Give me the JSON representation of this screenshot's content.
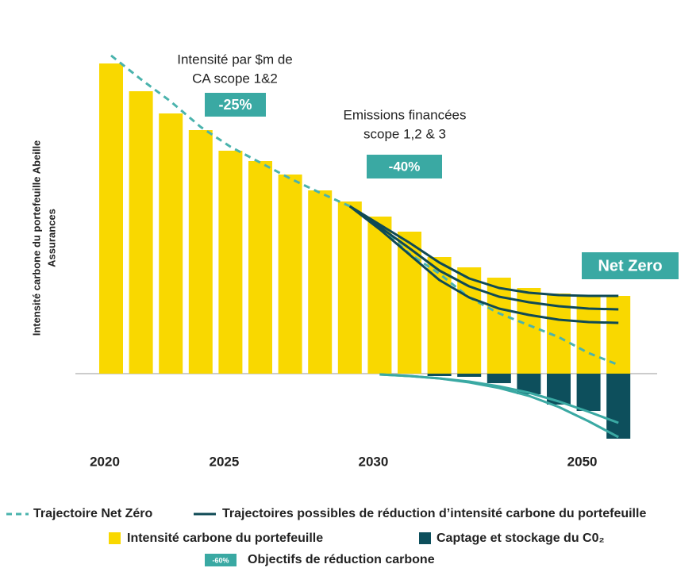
{
  "chart_data": {
    "type": "bar",
    "y_label": [
      "Intensité carbone du portefeuille Abeille",
      "Assurances"
    ],
    "categories": [
      "2020",
      null,
      null,
      null,
      "2025",
      null,
      null,
      null,
      null,
      "2030",
      null,
      null,
      null,
      null,
      null,
      null,
      "2050",
      null
    ],
    "ylim": [
      -100,
      400
    ],
    "series": [
      {
        "name": "Intensité carbone du portefeuille",
        "color": "#f9d800",
        "kind": "bar",
        "values": [
          391,
          356,
          328,
          307,
          281,
          268,
          251,
          231,
          217,
          198,
          179,
          147,
          134,
          121,
          108,
          101,
          98,
          98
        ]
      },
      {
        "name": "Captage et stockage du C0₂",
        "color": "#0d4f5c",
        "kind": "bar",
        "values": [
          null,
          null,
          null,
          null,
          null,
          null,
          null,
          null,
          null,
          null,
          null,
          -3,
          -4,
          -12,
          -26,
          -39,
          -47,
          -82
        ]
      },
      {
        "name": "Trajectoire Net Zéro",
        "color": "#4ab3ad",
        "kind": "dashed",
        "values": [
          401,
          371,
          343,
          311,
          286,
          266,
          246,
          228,
          211,
          186,
          151,
          126,
          96,
          76,
          61,
          46,
          26,
          11
        ]
      },
      {
        "name": "Trajectoires possibles de réduction d’intensité carbone du portefeuille",
        "color": "#0f4a55",
        "kind": "line",
        "values": [
          null,
          null,
          null,
          null,
          null,
          null,
          null,
          null,
          211,
          188,
          165,
          140,
          120,
          108,
          102,
          99,
          98,
          98
        ]
      },
      {
        "color": "#0f4a55",
        "kind": "line",
        "values": [
          null,
          null,
          null,
          null,
          null,
          null,
          null,
          null,
          211,
          185,
          158,
          130,
          110,
          97,
          90,
          85,
          82,
          81
        ]
      },
      {
        "color": "#0f4a55",
        "kind": "line",
        "values": [
          null,
          null,
          null,
          null,
          null,
          null,
          null,
          null,
          211,
          182,
          150,
          118,
          96,
          82,
          74,
          68,
          65,
          64
        ]
      },
      {
        "color": "#3aa9a3",
        "kind": "line",
        "values": [
          null,
          null,
          null,
          null,
          null,
          null,
          null,
          null,
          null,
          -1,
          -3,
          -6,
          -10,
          -16,
          -24,
          -35,
          -48,
          -62
        ]
      },
      {
        "color": "#3aa9a3",
        "kind": "line",
        "values": [
          null,
          null,
          null,
          null,
          null,
          null,
          null,
          null,
          null,
          -1,
          -3,
          -6,
          -11,
          -18,
          -28,
          -42,
          -60,
          -80
        ]
      }
    ],
    "annotations": [
      {
        "text": [
          "Intensité par $m de",
          "CA  scope 1&2"
        ],
        "badge": "-25%"
      },
      {
        "text": [
          "Emissions financées",
          "scope 1,2 & 3"
        ],
        "badge": "-40%"
      },
      {
        "badge": "Net Zero"
      }
    ],
    "target_legend": {
      "badge": "-60%",
      "text": "Objectifs de réduction carbone"
    },
    "badge_color": "#3aa9a3"
  }
}
